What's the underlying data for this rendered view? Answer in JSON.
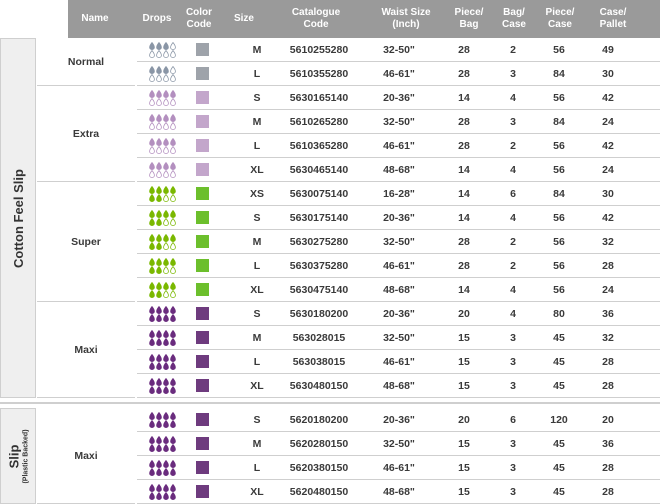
{
  "columns": [
    "Name",
    "Drops",
    "Color\nCode",
    "Size",
    "Catalogue\nCode",
    "Waist Size\n(Inch)",
    "Piece/\nBag",
    "Bag/\nCase",
    "Piece/\nCase",
    "Case/\nPallet"
  ],
  "colors": {
    "normal": "#9ea3aa",
    "extra": "#c3a6cb",
    "super": "#6cbf2c",
    "maxi": "#6e3b7e",
    "drop_normal": "#8a96a6",
    "drop_extra": "#b38fbf",
    "drop_super": "#7ab800",
    "drop_maxi": "#6a2c7e"
  },
  "groups": [
    {
      "label": "Cotton Feel Slip",
      "sublabel": "",
      "products": [
        {
          "name": "Normal",
          "color": "normal",
          "drops_filled": 3,
          "rows": [
            {
              "size": "M",
              "code": "5610255280",
              "waist": "32-50\"",
              "piece_bag": "28",
              "bag_case": "2",
              "piece_case": "56",
              "case_pallet": "49"
            },
            {
              "size": "L",
              "code": "5610355280",
              "waist": "46-61\"",
              "piece_bag": "28",
              "bag_case": "3",
              "piece_case": "84",
              "case_pallet": "30"
            }
          ]
        },
        {
          "name": "Extra",
          "color": "extra",
          "drops_filled": 4,
          "rows": [
            {
              "size": "S",
              "code": "5630165140",
              "waist": "20-36\"",
              "piece_bag": "14",
              "bag_case": "4",
              "piece_case": "56",
              "case_pallet": "42"
            },
            {
              "size": "M",
              "code": "5610265280",
              "waist": "32-50\"",
              "piece_bag": "28",
              "bag_case": "3",
              "piece_case": "84",
              "case_pallet": "24"
            },
            {
              "size": "L",
              "code": "5610365280",
              "waist": "46-61\"",
              "piece_bag": "28",
              "bag_case": "2",
              "piece_case": "56",
              "case_pallet": "42"
            },
            {
              "size": "XL",
              "code": "5630465140",
              "waist": "48-68\"",
              "piece_bag": "14",
              "bag_case": "4",
              "piece_case": "56",
              "case_pallet": "24"
            }
          ]
        },
        {
          "name": "Super",
          "color": "super",
          "drops_filled": 6,
          "rows": [
            {
              "size": "XS",
              "code": "5630075140",
              "waist": "16-28\"",
              "piece_bag": "14",
              "bag_case": "6",
              "piece_case": "84",
              "case_pallet": "30"
            },
            {
              "size": "S",
              "code": "5630175140",
              "waist": "20-36\"",
              "piece_bag": "14",
              "bag_case": "4",
              "piece_case": "56",
              "case_pallet": "42"
            },
            {
              "size": "M",
              "code": "5630275280",
              "waist": "32-50\"",
              "piece_bag": "28",
              "bag_case": "2",
              "piece_case": "56",
              "case_pallet": "32"
            },
            {
              "size": "L",
              "code": "5630375280",
              "waist": "46-61\"",
              "piece_bag": "28",
              "bag_case": "2",
              "piece_case": "56",
              "case_pallet": "28"
            },
            {
              "size": "XL",
              "code": "5630475140",
              "waist": "48-68\"",
              "piece_bag": "14",
              "bag_case": "4",
              "piece_case": "56",
              "case_pallet": "24"
            }
          ]
        },
        {
          "name": "Maxi",
          "color": "maxi",
          "drops_filled": 8,
          "rows": [
            {
              "size": "S",
              "code": "5630180200",
              "waist": "20-36\"",
              "piece_bag": "20",
              "bag_case": "4",
              "piece_case": "80",
              "case_pallet": "36"
            },
            {
              "size": "M",
              "code": "563028015",
              "waist": "32-50\"",
              "piece_bag": "15",
              "bag_case": "3",
              "piece_case": "45",
              "case_pallet": "32"
            },
            {
              "size": "L",
              "code": "563038015",
              "waist": "46-61\"",
              "piece_bag": "15",
              "bag_case": "3",
              "piece_case": "45",
              "case_pallet": "28"
            },
            {
              "size": "XL",
              "code": "5630480150",
              "waist": "48-68\"",
              "piece_bag": "15",
              "bag_case": "3",
              "piece_case": "45",
              "case_pallet": "28"
            }
          ]
        }
      ]
    },
    {
      "label": "Slip",
      "sublabel": "(Plastic Backed)",
      "products": [
        {
          "name": "Maxi",
          "color": "maxi",
          "drops_filled": 8,
          "rows": [
            {
              "size": "S",
              "code": "5620180200",
              "waist": "20-36\"",
              "piece_bag": "20",
              "bag_case": "6",
              "piece_case": "120",
              "case_pallet": "20"
            },
            {
              "size": "M",
              "code": "5620280150",
              "waist": "32-50\"",
              "piece_bag": "15",
              "bag_case": "3",
              "piece_case": "45",
              "case_pallet": "36"
            },
            {
              "size": "L",
              "code": "5620380150",
              "waist": "46-61\"",
              "piece_bag": "15",
              "bag_case": "3",
              "piece_case": "45",
              "case_pallet": "28"
            },
            {
              "size": "XL",
              "code": "5620480150",
              "waist": "48-68\"",
              "piece_bag": "15",
              "bag_case": "3",
              "piece_case": "45",
              "case_pallet": "28"
            }
          ]
        }
      ]
    }
  ]
}
